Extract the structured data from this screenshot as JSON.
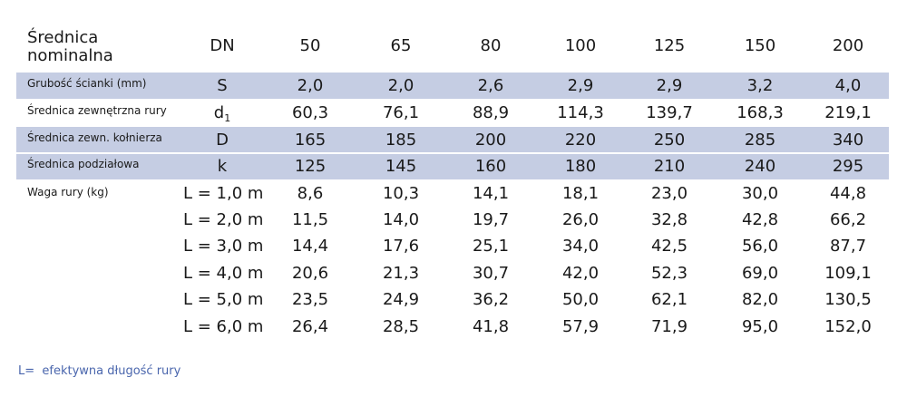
{
  "header": {
    "label": "Średnica nominalna",
    "symbol": "DN",
    "sizes": [
      "50",
      "65",
      "80",
      "100",
      "125",
      "150",
      "200"
    ]
  },
  "rows": [
    {
      "label": "Grubość ścianki (mm)",
      "symbol": "S",
      "values": [
        "2,0",
        "2,0",
        "2,6",
        "2,9",
        "2,9",
        "3,2",
        "4,0"
      ]
    },
    {
      "label": "Średnica zewnętrzna rury",
      "symbol": "d",
      "symbol_sub": "1",
      "values": [
        "60,3",
        "76,1",
        "88,9",
        "114,3",
        "139,7",
        "168,3",
        "219,1"
      ]
    },
    {
      "label": "Średnica zewn. kołnierza",
      "symbol": "D",
      "values": [
        "165",
        "185",
        "200",
        "220",
        "250",
        "285",
        "340"
      ]
    },
    {
      "label": "Średnica podziałowa",
      "symbol": "k",
      "values": [
        "125",
        "145",
        "160",
        "180",
        "210",
        "240",
        "295"
      ]
    }
  ],
  "weight": {
    "label": "Waga rury (kg)",
    "rows": [
      {
        "length": "L = 1,0 m",
        "values": [
          "8,6",
          "10,3",
          "14,1",
          "18,1",
          "23,0",
          "30,0",
          "44,8"
        ]
      },
      {
        "length": "L = 2,0 m",
        "values": [
          "11,5",
          "14,0",
          "19,7",
          "26,0",
          "32,8",
          "42,8",
          "66,2"
        ]
      },
      {
        "length": "L = 3,0 m",
        "values": [
          "14,4",
          "17,6",
          "25,1",
          "34,0",
          "42,5",
          "56,0",
          "87,7"
        ]
      },
      {
        "length": "L = 4,0 m",
        "values": [
          "20,6",
          "21,3",
          "30,7",
          "42,0",
          "52,3",
          "69,0",
          "109,1"
        ]
      },
      {
        "length": "L = 5,0 m",
        "values": [
          "23,5",
          "24,9",
          "36,2",
          "50,0",
          "62,1",
          "82,0",
          "130,5"
        ]
      },
      {
        "length": "L = 6,0 m",
        "values": [
          "26,4",
          "28,5",
          "41,8",
          "57,9",
          "71,9",
          "95,0",
          "152,0"
        ]
      }
    ]
  },
  "note": "L=  efektywna długość rury"
}
